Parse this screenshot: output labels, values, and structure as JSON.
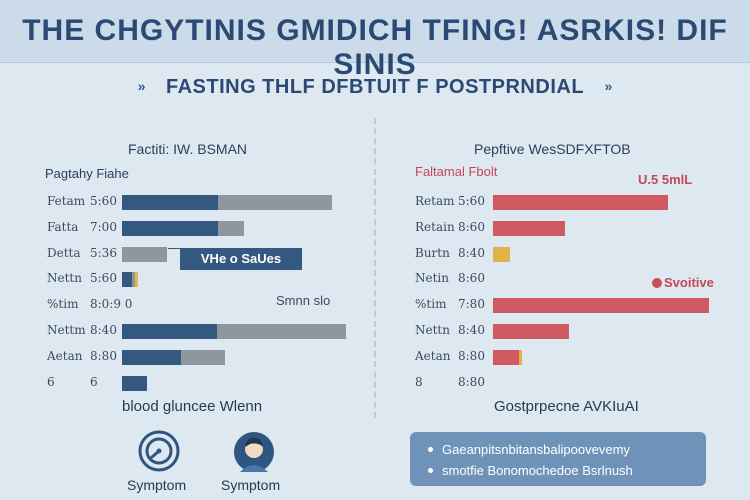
{
  "header": {
    "title": "THE CHGYTINIS GMIDICH TFING! ASRKIS! DIF SINIS",
    "subtitle": "FASTING THLF DFBTUIT F POSTPRNDIAL"
  },
  "chart_data": [
    {
      "type": "bar",
      "title": "Factiti: IW. BSMAN",
      "xlabel": "",
      "ylabel": "",
      "series_label": "Pagtahy Fiahe",
      "stacked": true,
      "categories": [
        "Fetam",
        "Fatta",
        "Detta",
        "Nettn",
        "%tim",
        "Nettm",
        "Aetan",
        "6"
      ],
      "category_values": [
        "5:60",
        "7:00",
        "5:36",
        "5:60",
        "8:0:9 0",
        "8:40",
        "8:80",
        "6"
      ],
      "series": [
        {
          "values": [
            96,
            96,
            0,
            10,
            0,
            95,
            59,
            25
          ]
        },
        {
          "values": [
            114,
            26,
            45,
            3,
            0,
            129,
            44,
            0
          ]
        }
      ],
      "colors": [
        "#34587f",
        "#8f979e"
      ],
      "accent_color": "#e2b94b",
      "callout": "VHe o SaUes",
      "annotation": "Smnn slo",
      "footer": "blood gluncee Wlenn",
      "icon_caption": "Symptom"
    },
    {
      "type": "bar",
      "title": "Pepftive WesSDFXFTOB",
      "xlabel": "",
      "ylabel": "",
      "series_label": "Faltamal Fbolt",
      "categories": [
        "Retam",
        "Retain",
        "Burtn",
        "Netin",
        "%tim",
        "Nettn",
        "Aetan",
        "8"
      ],
      "category_values": [
        "5:60",
        "8:60",
        "8:40",
        "8:60",
        "7:80",
        "8:40",
        "8:80",
        "8:80"
      ],
      "values": [
        175,
        72,
        17,
        0,
        216,
        76,
        26,
        0
      ],
      "colors": [
        "#cf5a62",
        "#e0b248"
      ],
      "value_colors": [
        "#cf5a62",
        "#cf5a62",
        "#e0b248",
        "#cf5a62",
        "#cf5a62",
        "#cf5a62",
        "#cf5a62",
        "#cf5a62"
      ],
      "annotation_top": "U.5 5mlL",
      "annotation_mid": "Svoitive",
      "footer": "Gostprpecne AVKIuAI",
      "info_items": [
        "Gaeanpitsnbitansbalipoovevemy",
        "smotfie Bonomochedoe Bsrlnush"
      ]
    }
  ],
  "icons": {
    "left": "timer-dial-icon",
    "right": "person-avatar-icon",
    "left_caption": "Symptom",
    "right_caption": "Symptom"
  }
}
